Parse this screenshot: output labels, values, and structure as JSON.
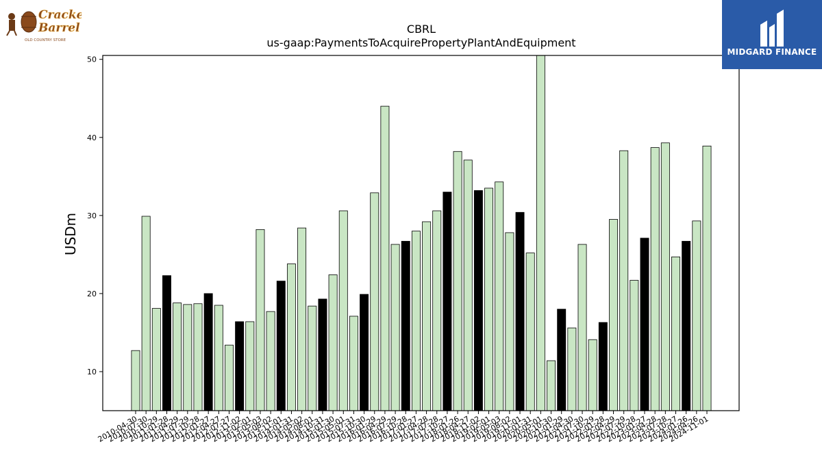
{
  "logos": {
    "left": {
      "name": "Cracker Barrel",
      "line1": "Cracker",
      "line2": "Barrel",
      "tagline": "OLD COUNTRY STORE"
    },
    "right": {
      "name": "MIDGARD FINANCE"
    }
  },
  "colors": {
    "normal_bar": "#c9e6c4",
    "highlight_bar": "#000000",
    "edge": "#000000",
    "logo_bg": "#2a5ba8"
  },
  "chart_data": {
    "type": "bar",
    "title": "CBRL",
    "subtitle": "us-gaap:PaymentsToAcquirePropertyPlantAndEquipment",
    "xlabel": "",
    "ylabel": "USDm",
    "ylim": [
      5,
      50.5
    ],
    "yticks": [
      10,
      20,
      30,
      40,
      50
    ],
    "grid": false,
    "categories": [
      "2010-04-30",
      "2010-07-30",
      "2010-10-29",
      "2011-01-28",
      "2011-04-29",
      "2011-07-29",
      "2011-10-28",
      "2012-01-27",
      "2012-04-27",
      "2012-07-27",
      "2012-11-02",
      "2013-02-01",
      "2013-05-03",
      "2013-08-02",
      "2013-11-01",
      "2014-01-31",
      "2014-05-02",
      "2014-08-01",
      "2014-10-31",
      "2015-01-30",
      "2015-05-01",
      "2015-07-31",
      "2015-10-30",
      "2016-01-29",
      "2016-04-29",
      "2016-07-29",
      "2016-10-28",
      "2017-01-27",
      "2017-04-28",
      "2017-07-28",
      "2017-10-27",
      "2018-01-26",
      "2018-04-27",
      "2018-11-02",
      "2019-02-01",
      "2019-05-03",
      "2019-08-02",
      "2019-11-01",
      "2020-01-31",
      "2020-05-01",
      "2020-10-30",
      "2021-01-29",
      "2021-04-30",
      "2021-07-30",
      "2021-10-29",
      "2022-01-28",
      "2022-04-29",
      "2022-07-29",
      "2022-10-28",
      "2023-01-27",
      "2023-04-28",
      "2023-07-28",
      "2023-10-27",
      "2024-01-26",
      "2024-04-26",
      "2024-11-01"
    ],
    "values": [
      12.7,
      29.9,
      18.1,
      22.3,
      18.8,
      18.6,
      18.7,
      20.0,
      18.5,
      13.4,
      16.4,
      16.4,
      28.2,
      17.7,
      21.6,
      23.8,
      28.4,
      18.4,
      19.3,
      22.4,
      30.6,
      17.1,
      19.9,
      32.9,
      44.0,
      26.3,
      26.7,
      28.0,
      29.2,
      30.6,
      33.0,
      38.2,
      37.1,
      33.2,
      33.5,
      34.3,
      27.8,
      30.4,
      25.2,
      50.6,
      11.4,
      18.0,
      15.6,
      26.3,
      14.1,
      16.3,
      29.5,
      38.3,
      21.7,
      27.1,
      38.7,
      39.3,
      24.7,
      26.7,
      29.3,
      38.9
    ],
    "highlight": [
      false,
      false,
      false,
      true,
      false,
      false,
      false,
      true,
      false,
      false,
      true,
      false,
      false,
      false,
      true,
      false,
      false,
      false,
      true,
      false,
      false,
      false,
      true,
      false,
      false,
      false,
      true,
      false,
      false,
      false,
      true,
      false,
      false,
      true,
      false,
      false,
      false,
      true,
      false,
      false,
      false,
      true,
      false,
      false,
      false,
      true,
      false,
      false,
      false,
      true,
      false,
      false,
      false,
      true,
      false,
      false
    ]
  }
}
